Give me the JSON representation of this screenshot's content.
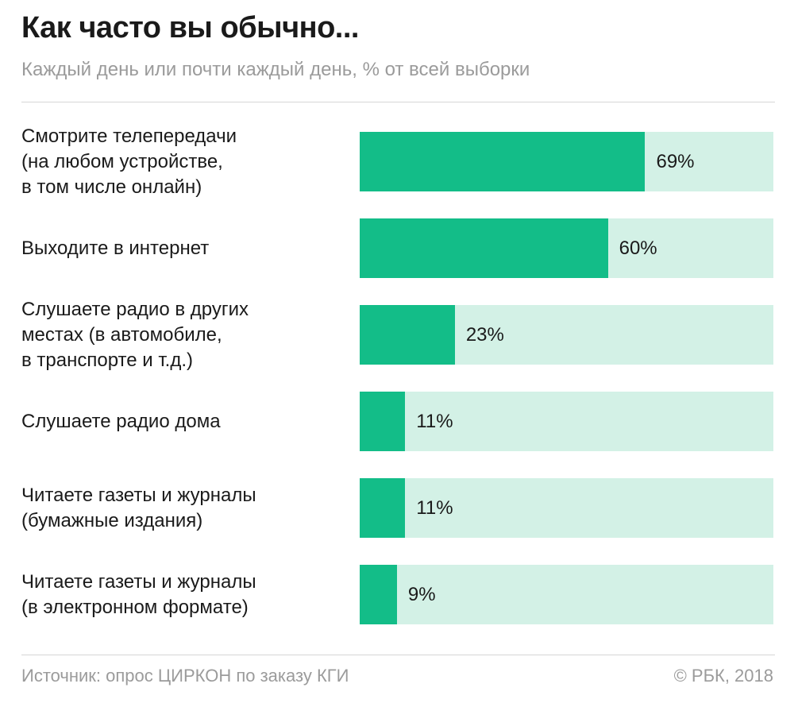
{
  "chart_data": {
    "type": "bar",
    "orientation": "horizontal",
    "title": "Как часто вы обычно...",
    "subtitle": "Каждый день или почти каждый день, % от всей выборки",
    "categories": [
      "Смотрите телепередачи\n(на любом устройстве,\nв том числе онлайн)",
      "Выходите в интернет",
      "Слушаете радио в других\nместах (в автомобиле,\nв транспорте и т.д.)",
      "Слушаете радио дома",
      "Читаете газеты и журналы\n(бумажные издания)",
      "Читаете газеты и журналы\n(в электронном формате)"
    ],
    "values": [
      69,
      60,
      23,
      11,
      11,
      9
    ],
    "value_labels": [
      "69%",
      "60%",
      "23%",
      "11%",
      "11%",
      "9%"
    ],
    "xlim": [
      0,
      100
    ],
    "unit": "%",
    "grid": false,
    "colors": {
      "bar": "#13bd88",
      "track": "#d3f1e6"
    }
  },
  "footer": {
    "source": "Источник: опрос ЦИРКОН по заказу КГИ",
    "credit": "© РБК, 2018"
  }
}
